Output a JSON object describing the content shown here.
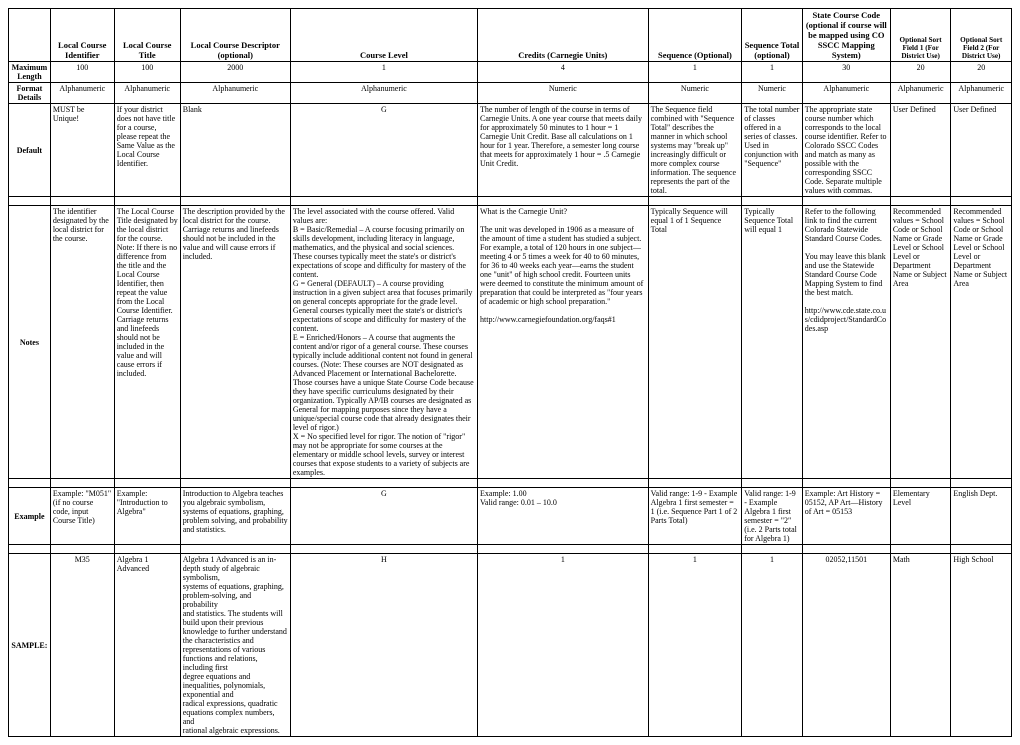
{
  "headers": {
    "rowlabel": "",
    "c1": "Local Course Identifier",
    "c2": "Local Course Title",
    "c3": "Local Course Descriptor (optional)",
    "c4": "Course Level",
    "c5": "Credits\n(Carnegie Units)",
    "c6": "Sequence (Optional)",
    "c7": "Sequence Total (optional)",
    "c8": "State Course Code (optional if course will be mapped using CO SSCC Mapping System)",
    "c9": "Optional Sort Field 1 (For District Use)",
    "c10": "Optional Sort Field 2 (For District Use)"
  },
  "rows": {
    "maxlen": {
      "label": "Maximum Length",
      "c1": "100",
      "c2": "100",
      "c3": "2000",
      "c4": "1",
      "c5": "4",
      "c6": "1",
      "c7": "1",
      "c8": "30",
      "c9": "20",
      "c10": "20"
    },
    "format": {
      "label": "Format Details",
      "c1": "Alphanumeric",
      "c2": "Alphanumeric",
      "c3": "Alphanumeric",
      "c4": "Alphanumeric",
      "c5": "Numeric",
      "c6": "Numeric",
      "c7": "Numeric",
      "c8": "Alphanumeric",
      "c9": "Alphanumeric",
      "c10": "Alphanumeric"
    },
    "default": {
      "label": "Default",
      "c1": "MUST be Unique!",
      "c2": "If your district does not have title for a course, please repeat the Same Value as the Local Course Identifier.",
      "c3": "Blank",
      "c4": "G",
      "c5": "The number of length of the course in terms of Carnegie Units. A one year course that meets daily for approximately 50 minutes to 1 hour = 1 Carnegie Unit Credit. Base all calculations on 1 hour for 1 year. Therefore, a semester long course that meets for approximately 1 hour = .5 Carnegie Unit Credit.",
      "c6": "The Sequence field combined with \"Sequence Total\" describes the manner in which school systems may \"break up\" increasingly difficult or more complex course information. The sequence represents the part of the total.",
      "c7": "The total number of classes offered in a series of classes. Used in conjunction with \"Sequence\"",
      "c8": "The appropriate state course number which corresponds to the local course identifier. Refer to Colorado SSCC Codes and match as many as possible with the corresponding SSCC Code. Separate multiple values with commas.",
      "c9": "User Defined",
      "c10": "User Defined"
    },
    "notes": {
      "label": "Notes",
      "c1": "The identifier designated by the local district for the course.",
      "c2": "The Local Course Title designated by the local district for the course. Note: If there is no difference from the title and the Local Course Identifier, then repeat the value from the Local Course Identifier. Carriage returns and linefeeds should not be included in the value and will cause errors if included.",
      "c3": "The description provided by the local district for the course. Carriage returns and linefeeds should not be included in the value and will cause errors if included.",
      "c4": "The level associated with the course offered. Valid values are:\nB = Basic/Remedial – A course focusing primarily on skills development, including literacy in language, mathematics, and the physical and social sciences. These courses typically meet the state's or district's expectations of scope and difficulty for mastery of the content.\nG = General (DEFAULT) – A course providing instruction in a given subject area that focuses primarily on general concepts appropriate for the grade level. General courses typically meet the state's or district's expectations of scope and difficulty for mastery of the content.\nE = Enriched/Honors – A course that augments the content and/or rigor of a general course. These courses typically include additional content not found in general courses. (Note: These courses are NOT designated as Advanced Placement or International Bachelorette. Those courses have a unique State Course Code because they have specific curriculums designated by their organization. Typically AP/IB courses are designated as General for mapping purposes since they have a unique/special course code that already designates their level of rigor.)\nX = No specified level for rigor. The notion of \"rigor\" may not be appropriate for some courses at the elementary or middle school levels, survey or interest courses that expose students to a variety of subjects are examples.",
      "c5": "What is the Carnegie Unit?\n\nThe unit was developed in 1906 as a measure of the amount of time a student has studied a subject. For example, a total of 120 hours in one subject—meeting 4 or 5 times a week for 40 to 60 minutes, for 36 to 40 weeks each year—earns the student one \"unit\" of high school credit. Fourteen units were deemed to constitute the minimum amount of preparation that could be interpreted as \"four years of academic or high school preparation.\"\n\nhttp://www.carnegiefoundation.org/faqs#1",
      "c6": "Typically Sequence will equal 1 of 1 Sequence Total",
      "c7": "Typically Sequence Total will equal 1",
      "c8": "Refer to the following link to find the current Colorado Statewide Standard Course Codes.\n\nYou may leave this blank and use the Statewide Standard Course Code Mapping System to find the best match.\n\nhttp://www.cde.state.co.us/cdidproject/StandardCodes.asp",
      "c9": "Recommended values = School Code or School Name or Grade Level or School Level or Department Name or Subject Area",
      "c10": "Recommended values = School Code or School Name or Grade Level or School Level or Department Name or Subject Area"
    },
    "example": {
      "label": "Example",
      "c1": "Example: \"M051\" (if no course code, input Course Title)",
      "c2": "Example: \"Introduction to Algebra\"",
      "c3": "Introduction to Algebra teaches you algebraic symbolism, systems of equations, graphing, problem solving, and probability and statistics.",
      "c4": "G",
      "c5": "Example: 1.00\nValid range: 0.01 – 10.0",
      "c6": "Valid range: 1-9 - Example Algebra 1 first semester = 1 (i.e. Sequence Part 1 of 2 Parts Total)",
      "c7": "Valid range: 1-9 - Example Algebra 1 first semester = \"2\" (i.e. 2 Parts total for Algebra 1)",
      "c8": "Example: Art History = 05152, AP Art—History of Art = 05153",
      "c9": "Elementary Level",
      "c10": "English Dept.",
      "c4_class": "center"
    },
    "sample": {
      "label": "SAMPLE:",
      "c1": "M35",
      "c2": "Algebra 1 Advanced",
      "c3": "Algebra 1 Advanced is an in-depth study of algebraic symbolism,\nsystems of equations, graphing, problem-solving, and probability\nand statistics. The students will build upon their previous\nknowledge to further understand the characteristics and\nrepresentations of various functions and relations, including first\ndegree equations and inequalities, polynomials, exponential and\nradical expressions, quadratic equations complex numbers, and\nrational algebraic expressions.",
      "c4": "H",
      "c5": "1",
      "c6": "1",
      "c7": "1",
      "c8": "02052,11501",
      "c9": "Math",
      "c10": "High School"
    }
  }
}
